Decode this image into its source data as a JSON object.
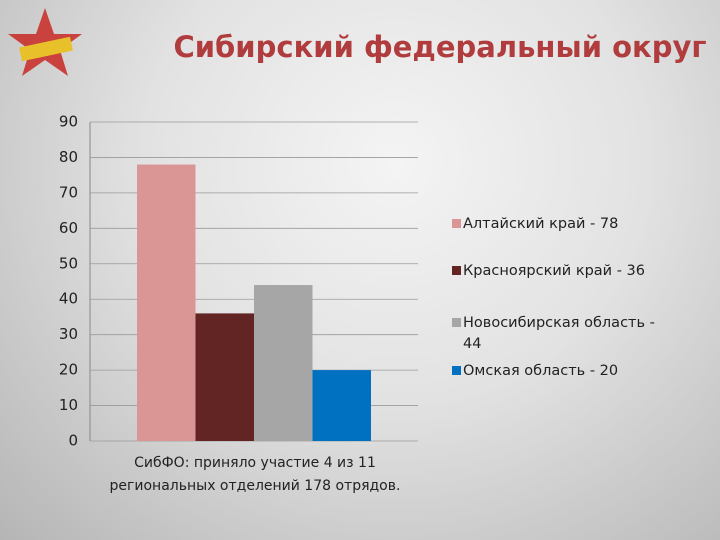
{
  "chart_data": {
    "type": "bar",
    "title": "Сибирский федеральный округ",
    "categories": [
      "СибФО: приняло участие 4 из 11 региональных отделений 178 отрядов."
    ],
    "series": [
      {
        "name": "Алтайский край - 78",
        "color": "#d99694",
        "values": [
          78
        ]
      },
      {
        "name": "Красноярский край - 36",
        "color": "#632523",
        "values": [
          36
        ]
      },
      {
        "name": "Новосибирская область - 44",
        "color": "#a6a6a6",
        "values": [
          44
        ]
      },
      {
        "name": "Омская область - 20",
        "color": "#0070c0",
        "values": [
          20
        ]
      }
    ],
    "ylim": [
      0,
      90
    ],
    "yticks": [
      0,
      10,
      20,
      30,
      40,
      50,
      60,
      70,
      80,
      90
    ],
    "grid": true,
    "legend": "right"
  }
}
